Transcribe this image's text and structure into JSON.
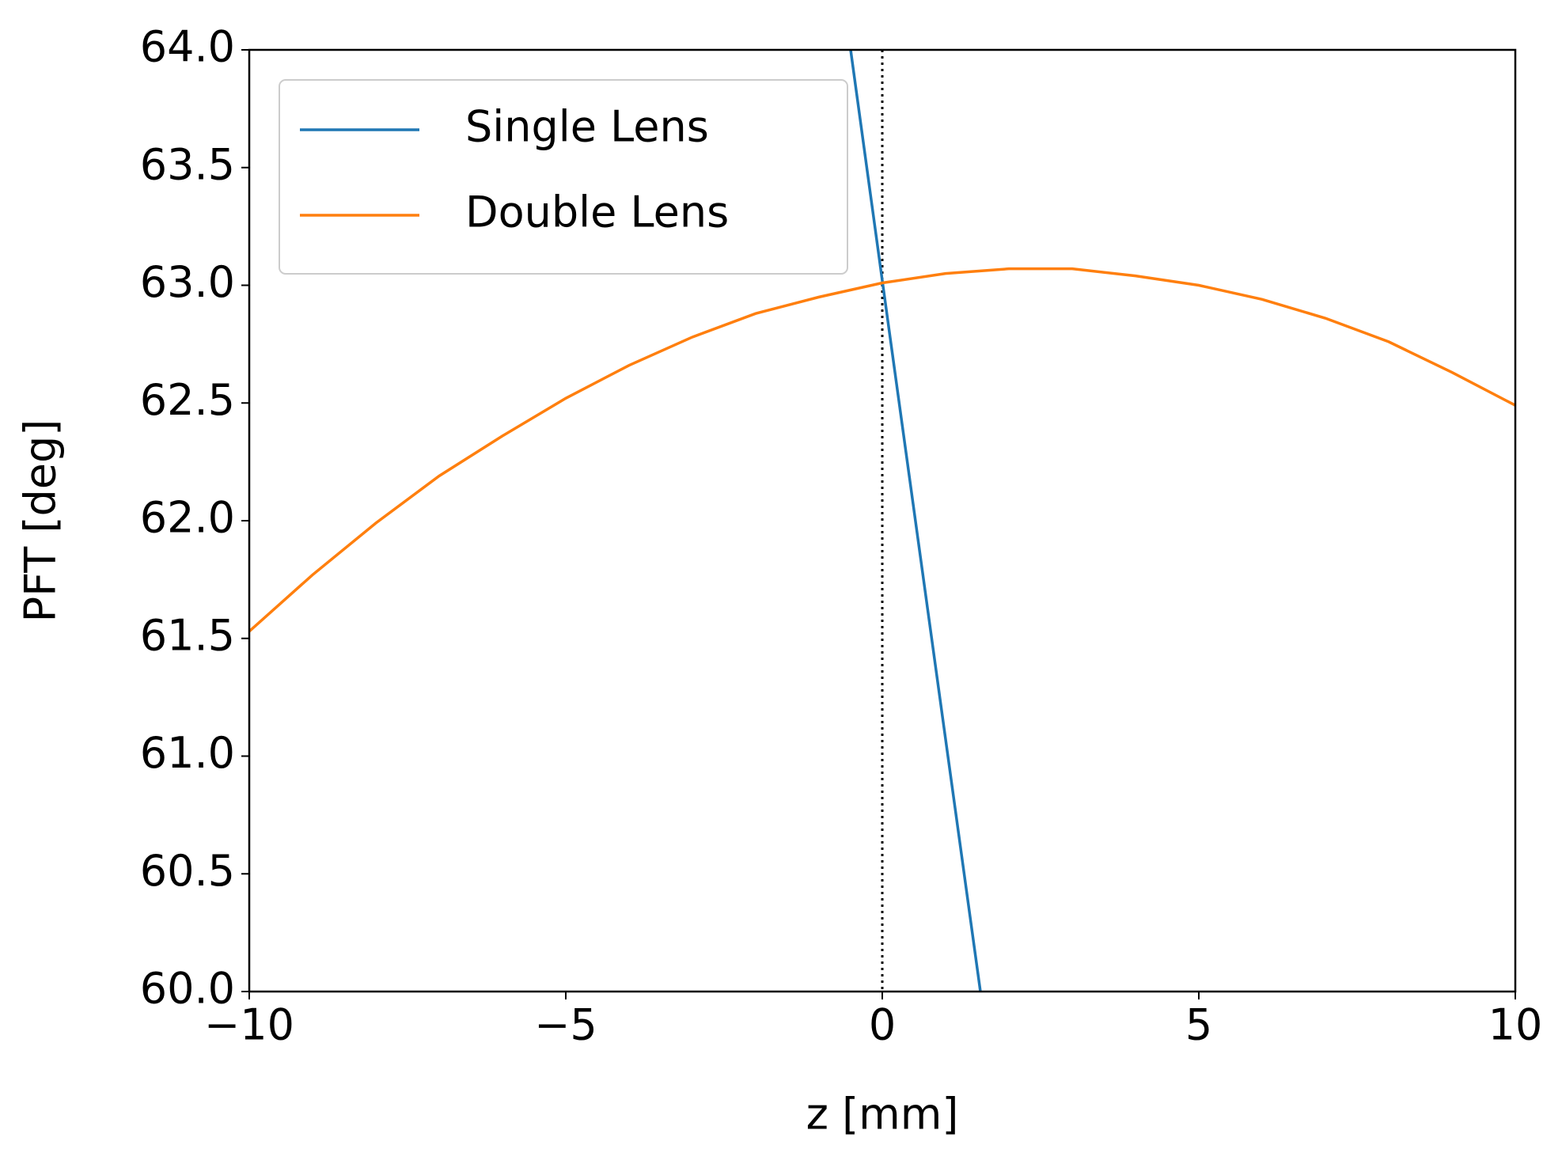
{
  "chart_data": {
    "type": "line",
    "xlabel": "z [mm]",
    "ylabel": "PFT [deg]",
    "xlim": [
      -10,
      10
    ],
    "ylim": [
      60.0,
      64.0
    ],
    "xticks": [
      {
        "value": -10,
        "label": "−10"
      },
      {
        "value": -5,
        "label": "−5"
      },
      0,
      5,
      10
    ],
    "yticks": [
      {
        "value": 60.0,
        "label": "60.0"
      },
      {
        "value": 60.5,
        "label": "60.5"
      },
      {
        "value": 61.0,
        "label": "61.0"
      },
      {
        "value": 61.5,
        "label": "61.5"
      },
      {
        "value": 62.0,
        "label": "62.0"
      },
      {
        "value": 62.5,
        "label": "62.5"
      },
      {
        "value": 63.0,
        "label": "63.0"
      },
      {
        "value": 63.5,
        "label": "63.5"
      },
      {
        "value": 64.0,
        "label": "64.0"
      }
    ],
    "vlines": [
      0
    ],
    "legend": "upper left",
    "series": [
      {
        "name": "Single Lens",
        "color": "#1f77b4",
        "x": [
          -0.5,
          0,
          1.55
        ],
        "values": [
          64.0,
          63.02,
          60.0
        ]
      },
      {
        "name": "Double Lens",
        "color": "#ff7f0e",
        "x": [
          -10,
          -9,
          -8,
          -7,
          -6,
          -5,
          -4,
          -3,
          -2,
          -1,
          0,
          1,
          2,
          3,
          4,
          5,
          6,
          7,
          8,
          9,
          10
        ],
        "values": [
          61.53,
          61.77,
          61.99,
          62.19,
          62.36,
          62.52,
          62.66,
          62.78,
          62.88,
          62.95,
          63.01,
          63.05,
          63.07,
          63.07,
          63.04,
          63.0,
          62.94,
          62.86,
          62.76,
          62.63,
          62.49
        ]
      }
    ]
  }
}
